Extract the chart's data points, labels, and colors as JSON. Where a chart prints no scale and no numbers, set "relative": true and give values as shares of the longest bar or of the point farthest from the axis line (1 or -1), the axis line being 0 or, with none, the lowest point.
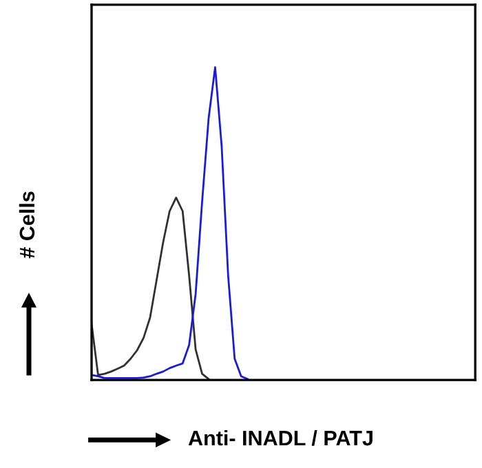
{
  "chart_data": {
    "type": "line",
    "relative": true,
    "xlabel": "Anti- INADL / PATJ",
    "ylabel": "# Cells",
    "grid": false,
    "legend": false,
    "marker": "none",
    "line_style": "solid",
    "categories": [
      null,
      null,
      null,
      null,
      null,
      null,
      null,
      null,
      null,
      null,
      null,
      null,
      null,
      null,
      null,
      null,
      null,
      null,
      null,
      null,
      null,
      null,
      null,
      null,
      null,
      null,
      null,
      null,
      null,
      null,
      null,
      null,
      null,
      null,
      null,
      null,
      null,
      null,
      null,
      null,
      null,
      null,
      null,
      null,
      null,
      null,
      null,
      null,
      null,
      null,
      null,
      null,
      null,
      null,
      null,
      null,
      null,
      null,
      null,
      null
    ],
    "series": [
      {
        "color": "#303030",
        "values": [
          0.18,
          0.016,
          0.02,
          0.027,
          0.036,
          0.046,
          0.068,
          0.095,
          0.135,
          0.2,
          0.32,
          0.44,
          0.54,
          0.583,
          0.54,
          0.334,
          0.098,
          0.02,
          0.003,
          null,
          null,
          null,
          null,
          null,
          null,
          null,
          null,
          null,
          null,
          null,
          null,
          null,
          null,
          null,
          null,
          null,
          null,
          null,
          null,
          null,
          null,
          null,
          null,
          null,
          null,
          null,
          null,
          null,
          null,
          null,
          null,
          null,
          null,
          null,
          null,
          null,
          null,
          null,
          null,
          null
        ]
      },
      {
        "color": "#1a1adc",
        "values": [
          0.016,
          0.012,
          0.006,
          0.006,
          0.006,
          0.006,
          0.006,
          0.006,
          0.008,
          0.012,
          0.02,
          0.027,
          0.038,
          0.046,
          0.053,
          0.112,
          0.275,
          0.571,
          0.837,
          1.0,
          0.749,
          0.334,
          0.068,
          0.012,
          0.003,
          null,
          null,
          null,
          null,
          null,
          null,
          null,
          null,
          null,
          null,
          null,
          null,
          null,
          null,
          null,
          null,
          null,
          null,
          null,
          null,
          null,
          null,
          null,
          null,
          null,
          null,
          null,
          null,
          null,
          null,
          null,
          null,
          null,
          null,
          null
        ]
      }
    ]
  }
}
